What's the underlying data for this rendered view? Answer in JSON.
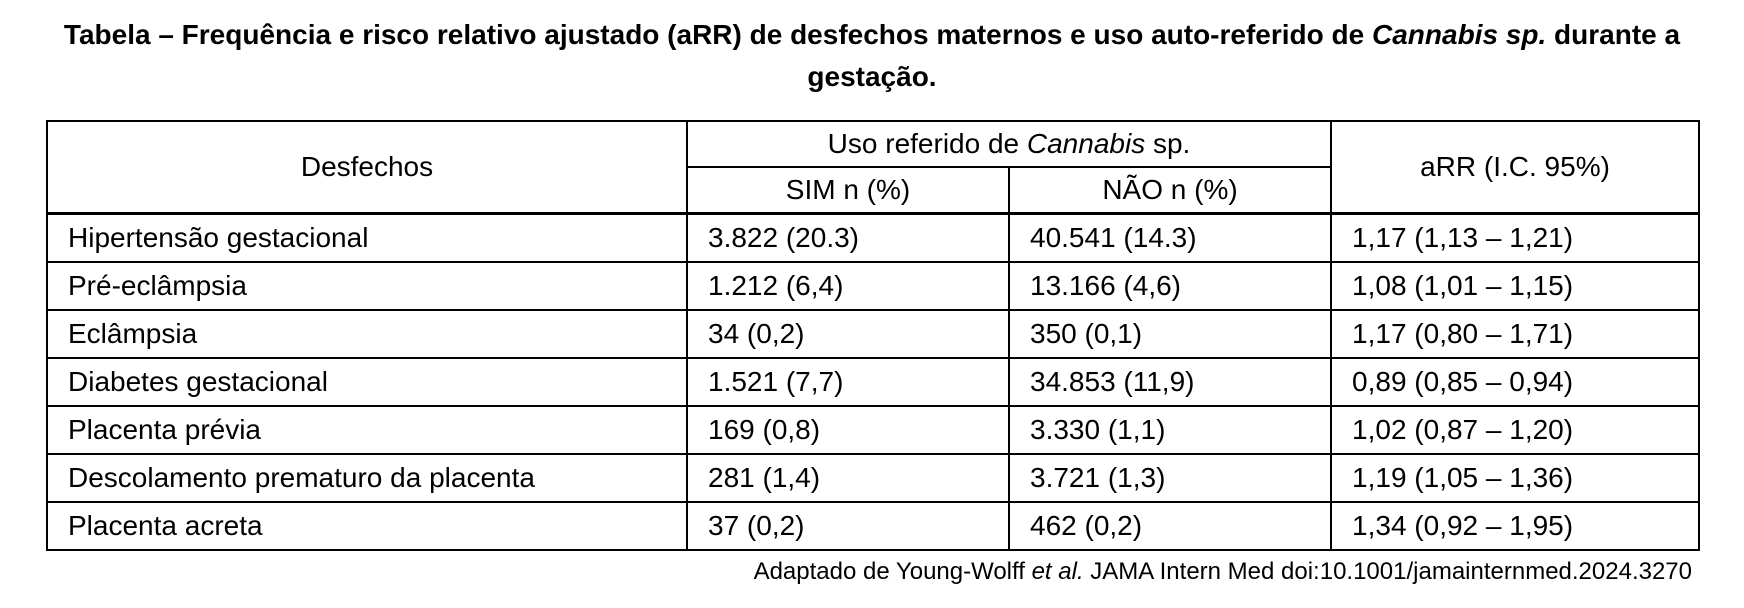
{
  "title": {
    "prefix": "Tabela – Frequência e risco relativo ajustado (aRR) de desfechos maternos e uso auto-referido de ",
    "italic": "Cannabis sp.",
    "suffix": " durante a gestação."
  },
  "table": {
    "header": {
      "col_outcomes": "Desfechos",
      "group_prefix": "Uso referido de ",
      "group_italic": "Cannabis",
      "group_suffix": " sp.",
      "col_yes": "SIM n (%)",
      "col_no": "NÃO n (%)",
      "col_arr": "aRR (I.C. 95%)"
    },
    "rows": [
      {
        "outcome": "Hipertensão gestacional",
        "yes": "3.822 (20.3)",
        "no": "40.541 (14.3)",
        "arr": "1,17 (1,13 – 1,21)"
      },
      {
        "outcome": "Pré-eclâmpsia",
        "yes": "1.212 (6,4)",
        "no": "13.166 (4,6)",
        "arr": "1,08 (1,01 – 1,15)"
      },
      {
        "outcome": "Eclâmpsia",
        "yes": "34 (0,2)",
        "no": "350 (0,1)",
        "arr": "1,17 (0,80 – 1,71)"
      },
      {
        "outcome": "Diabetes gestacional",
        "yes": "1.521 (7,7)",
        "no": "34.853 (11,9)",
        "arr": "0,89 (0,85 – 0,94)"
      },
      {
        "outcome": "Placenta prévia",
        "yes": "169 (0,8)",
        "no": "3.330 (1,1)",
        "arr": "1,02 (0,87 – 1,20)"
      },
      {
        "outcome": "Descolamento prematuro da placenta",
        "yes": "281 (1,4)",
        "no": "3.721 (1,3)",
        "arr": "1,19 (1,05 – 1,36)"
      },
      {
        "outcome": "Placenta acreta",
        "yes": "37 (0,2)",
        "no": "462 (0,2)",
        "arr": "1,34 (0,92 – 1,95)"
      }
    ]
  },
  "source": {
    "prefix": "Adaptado de Young-Wolff ",
    "italic": "et al.",
    "suffix": " JAMA Intern Med doi:10.1001/jamainternmed.2024.3270"
  }
}
